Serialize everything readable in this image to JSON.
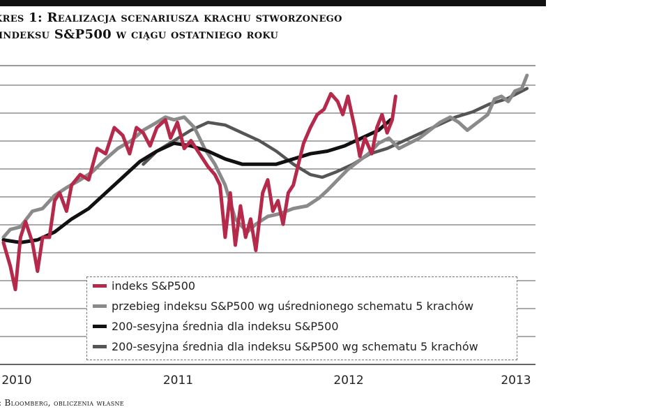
{
  "title_lines": [
    "kres 1: Realizacja scenariusza krachu stworzonego",
    "indeksu S&P500 w ciągu ostatniego roku"
  ],
  "source": ": Bloomberg, obliczenia własne",
  "colors": {
    "sp500": "#b5294a",
    "avg_scenario": "#8a8a8a",
    "sma200": "#111111",
    "sma200_scenario": "#555555",
    "grid": "#555555",
    "topbar": "#111111"
  },
  "chart_data": {
    "type": "line",
    "title": "",
    "xlabel": "",
    "ylabel": "",
    "grid": "horizontal",
    "legend_placement": "bottom-center",
    "x_ticks": [
      "2010",
      "2011",
      "2012",
      "2013"
    ],
    "xlim": [
      2009.98,
      2013.12
    ],
    "ylim": [
      0,
      100
    ],
    "series": [
      {
        "name": "indeks S&P500",
        "points": [
          [
            2010.0,
            36
          ],
          [
            2010.04,
            27
          ],
          [
            2010.07,
            18
          ],
          [
            2010.1,
            38
          ],
          [
            2010.13,
            44
          ],
          [
            2010.17,
            36
          ],
          [
            2010.2,
            25
          ],
          [
            2010.23,
            38
          ],
          [
            2010.27,
            38
          ],
          [
            2010.3,
            52
          ],
          [
            2010.33,
            55
          ],
          [
            2010.37,
            48
          ],
          [
            2010.4,
            58
          ],
          [
            2010.45,
            62
          ],
          [
            2010.5,
            60
          ],
          [
            2010.55,
            72
          ],
          [
            2010.6,
            70
          ],
          [
            2010.65,
            80
          ],
          [
            2010.7,
            77
          ],
          [
            2010.74,
            70
          ],
          [
            2010.78,
            80
          ],
          [
            2010.82,
            78
          ],
          [
            2010.86,
            73
          ],
          [
            2010.9,
            80
          ],
          [
            2010.95,
            83
          ],
          [
            2010.98,
            76
          ],
          [
            2011.02,
            82
          ],
          [
            2011.06,
            72
          ],
          [
            2011.1,
            75
          ],
          [
            2011.15,
            70
          ],
          [
            2011.2,
            65
          ],
          [
            2011.24,
            62
          ],
          [
            2011.27,
            58
          ],
          [
            2011.3,
            38
          ],
          [
            2011.33,
            55
          ],
          [
            2011.36,
            35
          ],
          [
            2011.39,
            50
          ],
          [
            2011.42,
            38
          ],
          [
            2011.45,
            45
          ],
          [
            2011.48,
            33
          ],
          [
            2011.52,
            55
          ],
          [
            2011.55,
            60
          ],
          [
            2011.58,
            48
          ],
          [
            2011.61,
            52
          ],
          [
            2011.64,
            43
          ],
          [
            2011.67,
            55
          ],
          [
            2011.7,
            58
          ],
          [
            2011.73,
            66
          ],
          [
            2011.76,
            74
          ],
          [
            2011.8,
            80
          ],
          [
            2011.84,
            85
          ],
          [
            2011.88,
            87
          ],
          [
            2011.92,
            93
          ],
          [
            2011.96,
            90
          ],
          [
            2011.99,
            85
          ],
          [
            2012.02,
            92
          ],
          [
            2012.06,
            80
          ],
          [
            2012.09,
            69
          ],
          [
            2012.12,
            76
          ],
          [
            2012.16,
            70
          ],
          [
            2012.19,
            80
          ],
          [
            2012.22,
            85
          ],
          [
            2012.25,
            78
          ],
          [
            2012.28,
            83
          ],
          [
            2012.3,
            92
          ]
        ]
      },
      {
        "name": "przebieg indeksu S&P500 wg uśrednionego schematu 5 krachów",
        "points": [
          [
            2010.0,
            38
          ],
          [
            2010.04,
            41
          ],
          [
            2010.1,
            42
          ],
          [
            2010.17,
            48
          ],
          [
            2010.23,
            49
          ],
          [
            2010.3,
            54
          ],
          [
            2010.37,
            57
          ],
          [
            2010.45,
            60
          ],
          [
            2010.52,
            63
          ],
          [
            2010.6,
            68
          ],
          [
            2010.67,
            72
          ],
          [
            2010.75,
            75
          ],
          [
            2010.82,
            79
          ],
          [
            2010.9,
            82
          ],
          [
            2010.95,
            84
          ],
          [
            2011.0,
            83
          ],
          [
            2011.06,
            84
          ],
          [
            2011.12,
            80
          ],
          [
            2011.18,
            72
          ],
          [
            2011.24,
            66
          ],
          [
            2011.3,
            58
          ],
          [
            2011.36,
            45
          ],
          [
            2011.43,
            40
          ],
          [
            2011.48,
            43
          ],
          [
            2011.55,
            46
          ],
          [
            2011.62,
            47
          ],
          [
            2011.7,
            49
          ],
          [
            2011.78,
            50
          ],
          [
            2011.85,
            53
          ],
          [
            2011.9,
            56
          ],
          [
            2011.96,
            60
          ],
          [
            2012.02,
            64
          ],
          [
            2012.08,
            67
          ],
          [
            2012.14,
            70
          ],
          [
            2012.2,
            74
          ],
          [
            2012.26,
            76
          ],
          [
            2012.32,
            72
          ],
          [
            2012.38,
            74
          ],
          [
            2012.44,
            76
          ],
          [
            2012.5,
            79
          ],
          [
            2012.56,
            82
          ],
          [
            2012.62,
            84
          ],
          [
            2012.67,
            82
          ],
          [
            2012.72,
            79
          ],
          [
            2012.78,
            82
          ],
          [
            2012.84,
            85
          ],
          [
            2012.88,
            91
          ],
          [
            2012.92,
            92
          ],
          [
            2012.96,
            90
          ],
          [
            2013.0,
            94
          ],
          [
            2013.04,
            95
          ],
          [
            2013.07,
            100
          ]
        ]
      },
      {
        "name": "200-sesyjna średnia dla indeksu S&P500",
        "points": [
          [
            2010.0,
            37
          ],
          [
            2010.1,
            36
          ],
          [
            2010.2,
            37
          ],
          [
            2010.3,
            40
          ],
          [
            2010.4,
            45
          ],
          [
            2010.5,
            49
          ],
          [
            2010.6,
            55
          ],
          [
            2010.7,
            61
          ],
          [
            2010.8,
            67
          ],
          [
            2010.9,
            71
          ],
          [
            2011.0,
            74
          ],
          [
            2011.1,
            73
          ],
          [
            2011.2,
            71
          ],
          [
            2011.3,
            68
          ],
          [
            2011.4,
            66
          ],
          [
            2011.5,
            66
          ],
          [
            2011.6,
            66
          ],
          [
            2011.7,
            68
          ],
          [
            2011.8,
            70
          ],
          [
            2011.9,
            71
          ],
          [
            2012.0,
            73
          ],
          [
            2012.1,
            76
          ],
          [
            2012.2,
            79
          ],
          [
            2012.27,
            83
          ]
        ]
      },
      {
        "name": "200-sesyjna średnia dla indeksu S&P500 wg schematu 5 krachów",
        "points": [
          [
            2010.82,
            66
          ],
          [
            2010.9,
            71
          ],
          [
            2011.0,
            75
          ],
          [
            2011.1,
            79
          ],
          [
            2011.2,
            82
          ],
          [
            2011.3,
            81
          ],
          [
            2011.4,
            78
          ],
          [
            2011.5,
            75
          ],
          [
            2011.6,
            71
          ],
          [
            2011.7,
            66
          ],
          [
            2011.8,
            62
          ],
          [
            2011.87,
            61
          ],
          [
            2011.95,
            63
          ],
          [
            2012.05,
            66
          ],
          [
            2012.15,
            70
          ],
          [
            2012.25,
            72
          ],
          [
            2012.35,
            75
          ],
          [
            2012.45,
            78
          ],
          [
            2012.55,
            81
          ],
          [
            2012.65,
            84
          ],
          [
            2012.75,
            86
          ],
          [
            2012.85,
            89
          ],
          [
            2012.95,
            91
          ],
          [
            2013.07,
            95
          ]
        ]
      }
    ]
  }
}
